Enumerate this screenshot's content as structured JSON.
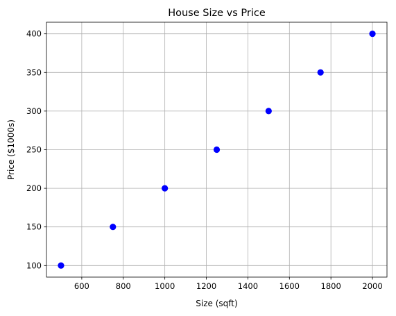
{
  "chart_data": {
    "type": "scatter",
    "title": "House Size vs Price",
    "xlabel": "Size (sqft)",
    "ylabel": "Price ($1000s)",
    "xlim": [
      430,
      2070
    ],
    "ylim": [
      85,
      415
    ],
    "x_ticks": [
      600,
      800,
      1000,
      1200,
      1400,
      1600,
      1800,
      2000
    ],
    "y_ticks": [
      100,
      150,
      200,
      250,
      300,
      350,
      400
    ],
    "grid": true,
    "marker_color": "#0000ff",
    "points": [
      {
        "x": 500,
        "y": 100
      },
      {
        "x": 750,
        "y": 150
      },
      {
        "x": 1000,
        "y": 200
      },
      {
        "x": 1250,
        "y": 250
      },
      {
        "x": 1500,
        "y": 300
      },
      {
        "x": 1750,
        "y": 350
      },
      {
        "x": 2000,
        "y": 400
      }
    ]
  }
}
